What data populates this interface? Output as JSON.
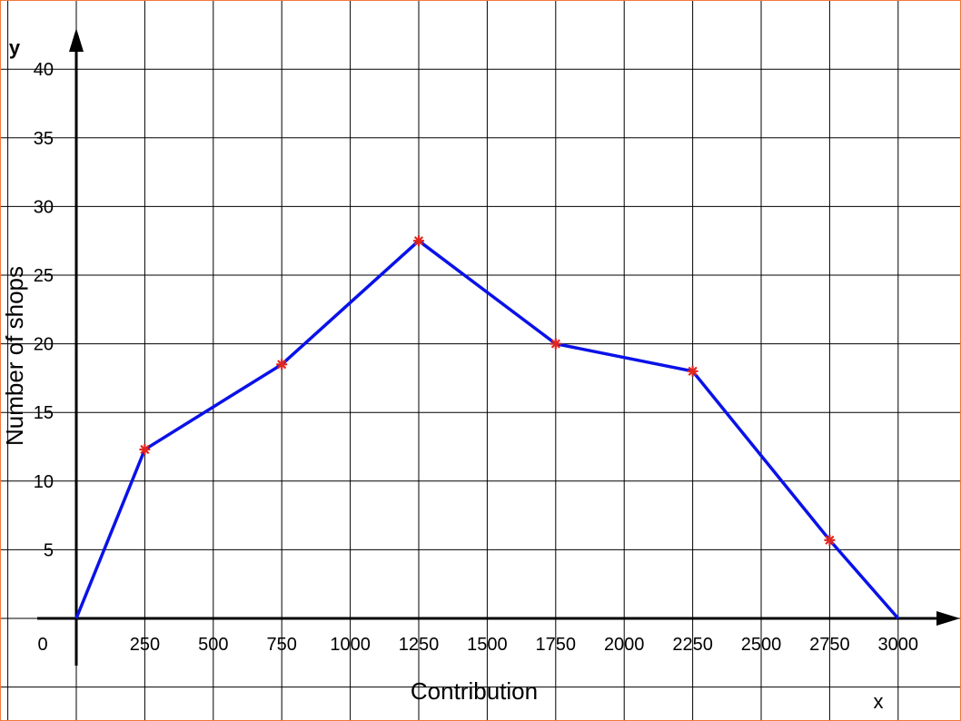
{
  "chart_data": {
    "type": "line",
    "title": "",
    "xlabel": "Contribution",
    "ylabel": "Number of shops",
    "x_axis_letter": "x",
    "y_axis_letter": "y",
    "origin_label": "0",
    "xlim": [
      -250,
      3250
    ],
    "ylim": [
      -5,
      45
    ],
    "x_ticks": [
      250,
      500,
      750,
      1000,
      1250,
      1500,
      1750,
      2000,
      2250,
      2500,
      2750,
      3000
    ],
    "y_ticks": [
      5,
      10,
      15,
      20,
      25,
      30,
      35,
      40
    ],
    "grid": true,
    "series": [
      {
        "color": "#0a12e8",
        "marker_color": "#e0261e",
        "points": [
          {
            "x": 0,
            "y": 0,
            "marked": false
          },
          {
            "x": 250,
            "y": 12.3,
            "marked": true
          },
          {
            "x": 750,
            "y": 18.5,
            "marked": true
          },
          {
            "x": 1250,
            "y": 27.5,
            "marked": true
          },
          {
            "x": 1750,
            "y": 20,
            "marked": true
          },
          {
            "x": 2250,
            "y": 18,
            "marked": true
          },
          {
            "x": 2750,
            "y": 5.7,
            "marked": true
          },
          {
            "x": 3000,
            "y": 0,
            "marked": false
          }
        ]
      }
    ]
  }
}
